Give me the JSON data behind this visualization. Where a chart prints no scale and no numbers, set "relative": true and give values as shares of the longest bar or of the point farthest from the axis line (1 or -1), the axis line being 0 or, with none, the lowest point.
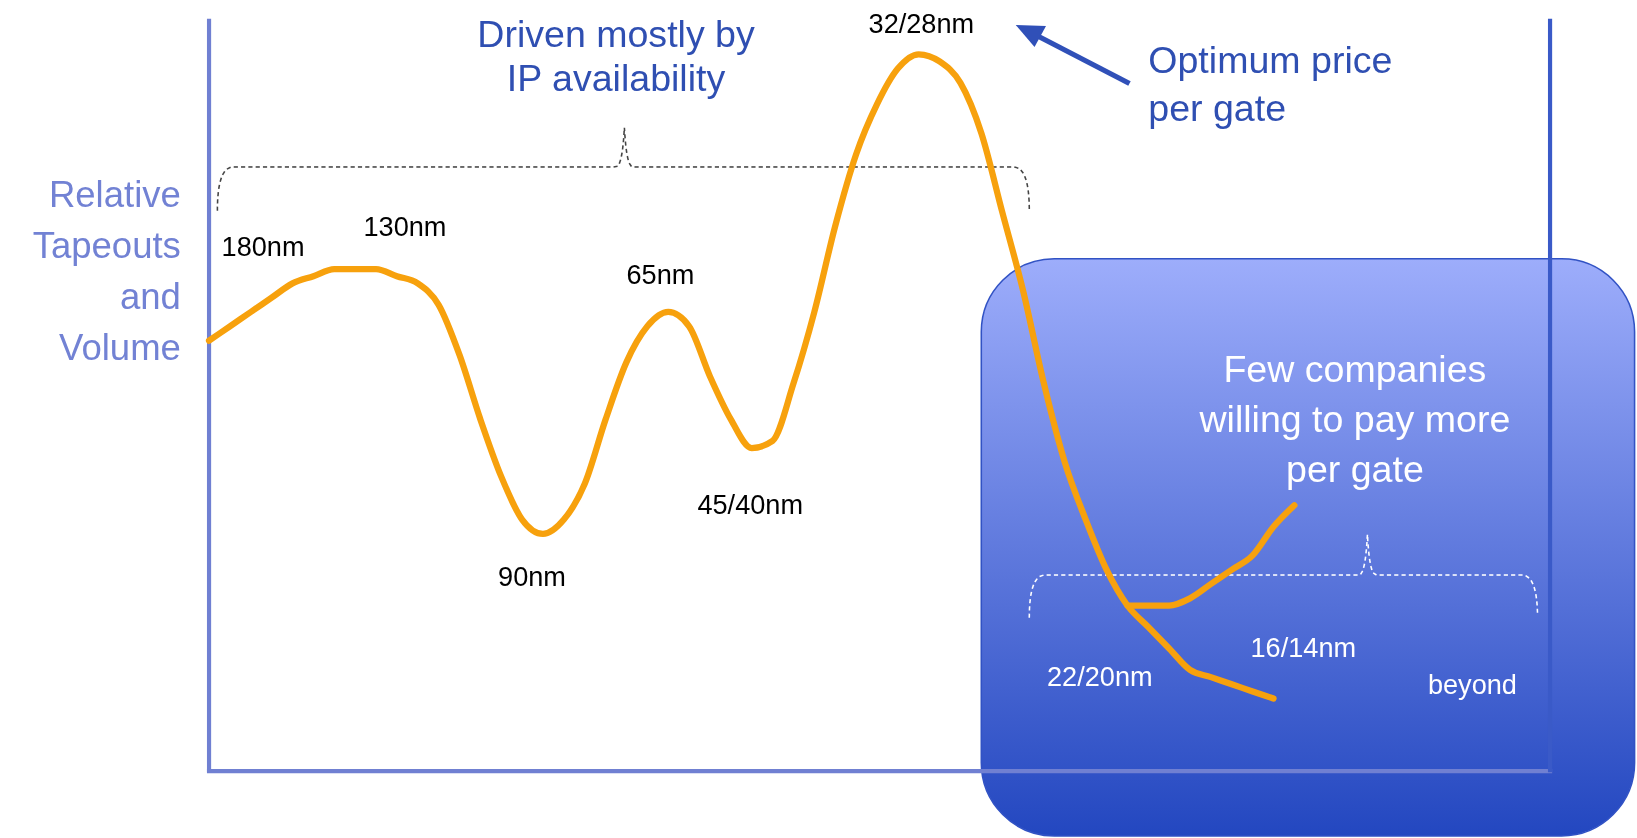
{
  "chart_data": {
    "type": "line",
    "relative": true,
    "ylabel": "Relative Tapeouts and Volume",
    "categories": [
      null,
      null,
      null,
      null,
      null,
      null,
      null,
      null,
      null,
      null,
      null,
      null,
      null,
      null,
      null,
      null,
      null,
      null,
      null,
      null,
      null,
      null,
      null,
      null,
      null,
      null,
      null,
      null,
      null,
      null,
      null,
      null,
      null,
      null,
      null,
      null,
      null,
      null,
      null,
      null,
      null,
      null,
      null,
      null,
      null,
      null,
      null,
      null,
      null,
      null,
      null,
      null,
      null
    ],
    "series": [
      {
        "color": "#f7a10d",
        "values": [
          0.6,
          0.62,
          0.64,
          0.66,
          0.68,
          0.69,
          0.7,
          0.7,
          0.7,
          0.69,
          0.68,
          0.65,
          0.58,
          0.49,
          0.41,
          0.35,
          0.33,
          0.35,
          0.4,
          0.49,
          0.57,
          0.62,
          0.64,
          0.62,
          0.55,
          0.49,
          0.45,
          0.46,
          0.54,
          0.64,
          0.76,
          0.86,
          0.93,
          0.98,
          1.0,
          0.99,
          0.96,
          0.89,
          0.78,
          0.67,
          0.54,
          0.43,
          0.35,
          0.28,
          0.23,
          0.2,
          0.17,
          0.14,
          0.13,
          0.12,
          0.11,
          0.1,
          null
        ]
      },
      {
        "color": "#f7a10d",
        "values": [
          null,
          null,
          null,
          null,
          null,
          null,
          null,
          null,
          null,
          null,
          null,
          null,
          null,
          null,
          null,
          null,
          null,
          null,
          null,
          null,
          null,
          null,
          null,
          null,
          null,
          null,
          null,
          null,
          null,
          null,
          null,
          null,
          null,
          null,
          null,
          null,
          null,
          null,
          null,
          null,
          null,
          null,
          null,
          null,
          0.23,
          0.23,
          0.23,
          0.24,
          0.26,
          0.28,
          0.3,
          0.34,
          0.37
        ]
      }
    ],
    "annotations": [
      "Driven mostly by IP availability",
      "Optimum price per gate",
      "Few companies willing to pay more per gate",
      "180nm",
      "130nm",
      "90nm",
      "65nm",
      "45/40nm",
      "32/28nm",
      "22/20nm",
      "16/14nm",
      "beyond"
    ]
  }
}
